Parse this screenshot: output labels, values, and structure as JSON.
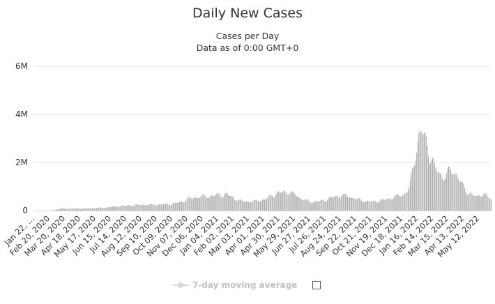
{
  "chart_data": {
    "type": "bar",
    "title": "Daily New Cases",
    "subtitle_lines": [
      "Cases per Day",
      "Data as of 0:00 GMT+0"
    ],
    "xlabel": "",
    "ylabel": "",
    "ylim": [
      0,
      6000000
    ],
    "y_ticks": [
      0,
      2000000,
      4000000,
      6000000
    ],
    "y_tick_labels": [
      "0",
      "2M",
      "4M",
      "6M"
    ],
    "x_tick_labels": [
      "Jan 22, …",
      "Feb 20, 2020",
      "Mar 20, 2020",
      "Apr 18, 2020",
      "May 17, 2020",
      "Jun 15, 2020",
      "Jul 14, 2020",
      "Aug 12, 2020",
      "Sep 10, 2020",
      "Oct 09, 2020",
      "Nov 07, 2020",
      "Dec 06, 2020",
      "Jan 04, 2021",
      "Feb 02, 2021",
      "Mar 03, 2021",
      "Apr 01, 2021",
      "Apr 30, 2021",
      "May 29, 2021",
      "Jun 27, 2021",
      "Jul 26, 2021",
      "Aug 24, 2021",
      "Sep 22, 2021",
      "Oct 21, 2021",
      "Nov 19, 2021",
      "Dec 18, 2021",
      "Jan 16, 2022",
      "Feb 14, 2022",
      "Mar 15, 2022",
      "Apr 13, 2022",
      "May 12, 2022"
    ],
    "grid": true,
    "legend_position": "bottom-center",
    "series": [
      {
        "values_description": "Weekly estimates of daily new cases, Jan 22 2020 – end of May 2022",
        "x": [
          "2020-01-22",
          "2020-02-26",
          "2020-03-04",
          "2020-03-11",
          "2020-03-18",
          "2020-03-25",
          "2020-04-01",
          "2020-04-15",
          "2020-05-01",
          "2020-05-17",
          "2020-06-01",
          "2020-06-15",
          "2020-07-01",
          "2020-07-14",
          "2020-08-01",
          "2020-08-12",
          "2020-09-01",
          "2020-09-10",
          "2020-10-01",
          "2020-10-09",
          "2020-10-25",
          "2020-11-07",
          "2020-11-20",
          "2020-12-06",
          "2020-12-20",
          "2021-01-04",
          "2021-01-11",
          "2021-01-20",
          "2021-02-02",
          "2021-02-15",
          "2021-03-03",
          "2021-03-15",
          "2021-04-01",
          "2021-04-15",
          "2021-04-30",
          "2021-05-10",
          "2021-05-29",
          "2021-06-10",
          "2021-06-27",
          "2021-07-10",
          "2021-07-26",
          "2021-08-10",
          "2021-08-24",
          "2021-09-10",
          "2021-09-22",
          "2021-10-05",
          "2021-10-21",
          "2021-11-05",
          "2021-11-19",
          "2021-12-05",
          "2021-12-18",
          "2021-12-28",
          "2022-01-05",
          "2022-01-10",
          "2022-01-16",
          "2022-01-21",
          "2022-01-28",
          "2022-02-05",
          "2022-02-14",
          "2022-02-25",
          "2022-03-05",
          "2022-03-15",
          "2022-03-25",
          "2022-04-05",
          "2022-04-13",
          "2022-04-25",
          "2022-05-05",
          "2022-05-12",
          "2022-05-20",
          "2022-05-31"
        ],
        "values": [
          0,
          2000,
          50000,
          80000,
          90000,
          80000,
          90000,
          90000,
          100000,
          110000,
          130000,
          160000,
          200000,
          220000,
          250000,
          260000,
          260000,
          270000,
          280000,
          300000,
          380000,
          520000,
          590000,
          630000,
          650000,
          700000,
          700000,
          720000,
          550000,
          420000,
          400000,
          420000,
          500000,
          700000,
          800000,
          850000,
          700000,
          500000,
          380000,
          400000,
          500000,
          620000,
          680000,
          600000,
          500000,
          420000,
          400000,
          450000,
          520000,
          640000,
          720000,
          1000000,
          2000000,
          2800000,
          3300000,
          3500000,
          3100000,
          2500000,
          1900000,
          1600000,
          1500000,
          1800000,
          1700000,
          1200000,
          900000,
          700000,
          600000,
          750000,
          700000,
          500000
        ]
      }
    ],
    "legend": {
      "label": "7-day moving average"
    }
  },
  "colors": {
    "bar": "#a6a6a6",
    "grid": "#e6e6e6",
    "axis": "#ccd6eb",
    "text": "#333333",
    "legend_text": "#c2c2c2"
  }
}
